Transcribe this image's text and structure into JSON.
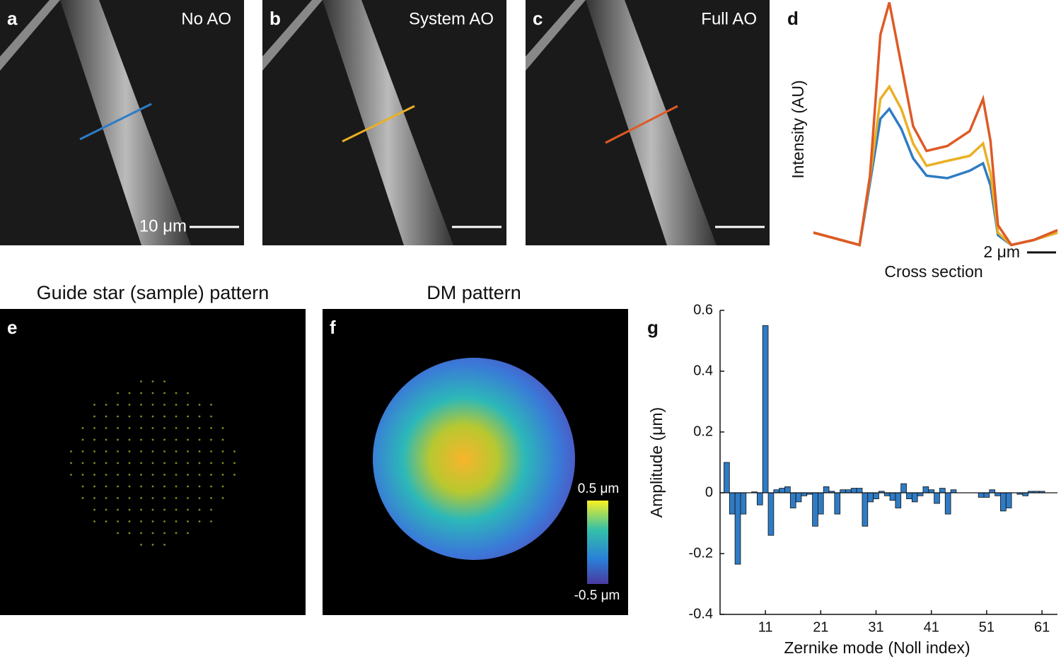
{
  "panels": {
    "a": "a",
    "b": "b",
    "c": "c",
    "d": "d",
    "e": "e",
    "f": "f",
    "g": "g",
    "a_label": "No AO",
    "b_label": "System AO",
    "c_label": "Full AO",
    "scale_a": "10 μm",
    "e_title": "Guide star (sample) pattern",
    "f_title": "DM pattern",
    "cbar_max": "0.5 μm",
    "cbar_min": "-0.5 μm"
  },
  "chart_data": [
    {
      "type": "line",
      "xlabel": "Cross section",
      "ylabel": "Intensity (AU)",
      "scale_bar": "2 μm",
      "x": [
        0,
        3.1,
        3.8,
        4.5,
        5.1,
        5.9,
        6.7,
        7.6,
        9.0,
        10.5,
        11.4,
        11.9,
        12.4,
        13.3,
        14.8,
        16.4
      ],
      "xlim": [
        0,
        16.4
      ],
      "ylim": [
        0,
        100
      ],
      "series": [
        {
          "color": "#2f7bc4",
          "values": [
            6,
            1,
            26,
            52,
            56,
            48,
            36,
            29,
            28,
            31,
            34,
            25,
            5,
            1,
            3,
            6
          ]
        },
        {
          "color": "#eab024",
          "values": [
            6,
            1,
            28,
            60,
            65,
            56,
            42,
            33,
            35,
            37,
            42,
            30,
            6,
            1,
            3,
            6
          ]
        },
        {
          "color": "#de5a26",
          "values": [
            6,
            1,
            29,
            86,
            99,
            74,
            49,
            39,
            41,
            47,
            60,
            43,
            9,
            1,
            3,
            7
          ]
        }
      ]
    },
    {
      "type": "bar",
      "xlabel": "Zernike mode (Noll index)",
      "ylabel": "Amplitude (μm)",
      "color": "#2f7bc4",
      "x": [
        4,
        5,
        6,
        7,
        8,
        9,
        10,
        11,
        12,
        13,
        14,
        15,
        16,
        17,
        18,
        19,
        20,
        21,
        22,
        23,
        24,
        25,
        26,
        27,
        28,
        29,
        30,
        31,
        32,
        33,
        34,
        35,
        36,
        37,
        38,
        39,
        40,
        41,
        42,
        43,
        44,
        45,
        46,
        47,
        48,
        49,
        50,
        51,
        52,
        53,
        54,
        55,
        56,
        57,
        58,
        59,
        60,
        61
      ],
      "values": [
        0.1,
        -0.07,
        -0.235,
        -0.07,
        0,
        0.003,
        -0.04,
        0.55,
        -0.14,
        0.01,
        0.015,
        0.02,
        -0.05,
        -0.03,
        -0.01,
        -0.005,
        -0.11,
        -0.07,
        0.02,
        0.005,
        -0.07,
        0.01,
        0.01,
        0.015,
        0.015,
        -0.11,
        -0.03,
        -0.02,
        0.005,
        -0.01,
        -0.025,
        -0.05,
        0.03,
        -0.02,
        -0.03,
        -0.01,
        0.02,
        0.01,
        -0.035,
        0.015,
        -0.07,
        0.01,
        0,
        0,
        0,
        0,
        -0.015,
        -0.015,
        0.01,
        -0.01,
        -0.06,
        -0.05,
        0,
        -0.005,
        -0.01,
        0.005,
        0.005,
        0.005
      ],
      "xlim": [
        2.8,
        63.8
      ],
      "ylim": [
        -0.4,
        0.6
      ],
      "xticks": [
        11,
        21,
        31,
        41,
        51,
        61
      ],
      "yticks": [
        -0.4,
        -0.2,
        0,
        0.2,
        0.4,
        0.6
      ]
    }
  ]
}
